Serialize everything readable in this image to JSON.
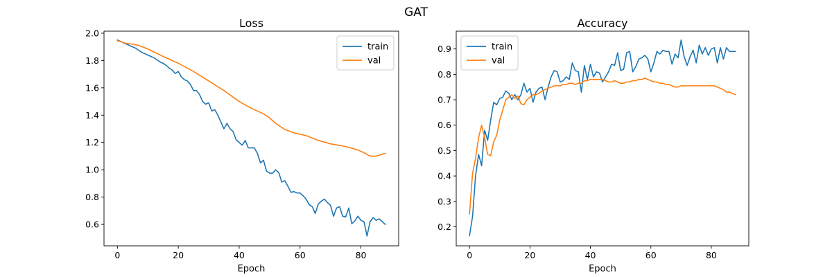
{
  "figure": {
    "title": "GAT"
  },
  "colors": {
    "train": "#1f77b4",
    "val": "#ff7f0e"
  },
  "chart_data": [
    {
      "type": "line",
      "title": "Loss",
      "xlabel": "Epoch",
      "ylabel": "",
      "xlim": [
        -4.4,
        92.4
      ],
      "ylim": [
        0.443,
        2.015
      ],
      "xticks": [
        0,
        20,
        40,
        60,
        80
      ],
      "xtick_labels": [
        "0",
        "20",
        "40",
        "60",
        "80"
      ],
      "yticks": [
        0.6,
        0.8,
        1.0,
        1.2,
        1.4,
        1.6,
        1.8,
        2.0
      ],
      "ytick_labels": [
        "0.6",
        "0.8",
        "1.0",
        "1.2",
        "1.4",
        "1.6",
        "1.8",
        "2.0"
      ],
      "legend": {
        "position": "upper right",
        "labels": [
          "train",
          "val"
        ]
      },
      "series": [
        {
          "name": "train",
          "x": [
            0,
            1,
            2,
            3,
            4,
            5,
            6,
            7,
            8,
            9,
            10,
            11,
            12,
            13,
            14,
            15,
            16,
            17,
            18,
            19,
            20,
            21,
            22,
            23,
            24,
            25,
            26,
            27,
            28,
            29,
            30,
            31,
            32,
            33,
            34,
            35,
            36,
            37,
            38,
            39,
            40,
            41,
            42,
            43,
            44,
            45,
            46,
            47,
            48,
            49,
            50,
            51,
            52,
            53,
            54,
            55,
            56,
            57,
            58,
            59,
            60,
            61,
            62,
            63,
            64,
            65,
            66,
            67,
            68,
            69,
            70,
            71,
            72,
            73,
            74,
            75,
            76,
            77,
            78,
            79,
            80,
            81,
            82,
            83,
            84,
            85,
            86,
            87,
            88
          ],
          "y": [
            1.95,
            1.94,
            1.93,
            1.92,
            1.91,
            1.9,
            1.89,
            1.875,
            1.86,
            1.85,
            1.84,
            1.83,
            1.82,
            1.805,
            1.79,
            1.78,
            1.765,
            1.745,
            1.73,
            1.705,
            1.72,
            1.68,
            1.66,
            1.65,
            1.625,
            1.58,
            1.58,
            1.55,
            1.5,
            1.48,
            1.49,
            1.43,
            1.44,
            1.4,
            1.35,
            1.3,
            1.34,
            1.3,
            1.28,
            1.22,
            1.2,
            1.18,
            1.215,
            1.16,
            1.16,
            1.16,
            1.12,
            1.05,
            1.07,
            0.99,
            0.975,
            0.975,
            1.0,
            0.98,
            0.91,
            0.92,
            0.88,
            0.835,
            0.84,
            0.83,
            0.83,
            0.81,
            0.785,
            0.745,
            0.73,
            0.68,
            0.75,
            0.77,
            0.785,
            0.76,
            0.74,
            0.66,
            0.72,
            0.73,
            0.66,
            0.655,
            0.72,
            0.605,
            0.625,
            0.66,
            0.63,
            0.62,
            0.515,
            0.62,
            0.65,
            0.63,
            0.64,
            0.62,
            0.6
          ]
        },
        {
          "name": "val",
          "x": [
            0,
            3,
            5,
            7,
            10,
            15,
            20,
            25,
            30,
            35,
            40,
            44,
            48,
            50,
            52,
            55,
            58,
            62,
            66,
            70,
            75,
            79,
            81,
            83,
            85,
            88
          ],
          "y": [
            1.945,
            1.925,
            1.92,
            1.91,
            1.885,
            1.83,
            1.78,
            1.72,
            1.65,
            1.58,
            1.5,
            1.45,
            1.41,
            1.38,
            1.34,
            1.295,
            1.27,
            1.25,
            1.215,
            1.19,
            1.17,
            1.145,
            1.125,
            1.1,
            1.1,
            1.12
          ]
        }
      ]
    },
    {
      "type": "line",
      "title": "Accuracy",
      "xlabel": "Epoch",
      "ylabel": "",
      "xlim": [
        -4.4,
        92.4
      ],
      "ylim": [
        0.125,
        0.97
      ],
      "xticks": [
        0,
        20,
        40,
        60,
        80
      ],
      "xtick_labels": [
        "0",
        "20",
        "40",
        "60",
        "80"
      ],
      "yticks": [
        0.2,
        0.3,
        0.4,
        0.5,
        0.6,
        0.7,
        0.8,
        0.9
      ],
      "ytick_labels": [
        "0.2",
        "0.3",
        "0.4",
        "0.5",
        "0.6",
        "0.7",
        "0.8",
        "0.9"
      ],
      "legend": {
        "position": "upper left",
        "labels": [
          "train",
          "val"
        ]
      },
      "series": [
        {
          "name": "train",
          "x": [
            0,
            1,
            2,
            3,
            4,
            5,
            6,
            7,
            8,
            9,
            10,
            11,
            12,
            13,
            14,
            15,
            16,
            17,
            18,
            19,
            20,
            21,
            22,
            23,
            24,
            25,
            26,
            27,
            28,
            29,
            30,
            31,
            32,
            33,
            34,
            35,
            36,
            37,
            38,
            39,
            40,
            41,
            42,
            43,
            44,
            45,
            46,
            47,
            48,
            49,
            50,
            51,
            52,
            53,
            54,
            55,
            56,
            57,
            58,
            59,
            60,
            61,
            62,
            63,
            64,
            65,
            66,
            67,
            68,
            69,
            70,
            71,
            72,
            73,
            74,
            75,
            76,
            77,
            78,
            79,
            80,
            81,
            82,
            83,
            84,
            85,
            86,
            87,
            88
          ],
          "y": [
            0.165,
            0.24,
            0.4,
            0.485,
            0.44,
            0.58,
            0.54,
            0.62,
            0.69,
            0.68,
            0.705,
            0.71,
            0.735,
            0.725,
            0.7,
            0.72,
            0.7,
            0.72,
            0.765,
            0.73,
            0.745,
            0.69,
            0.73,
            0.745,
            0.75,
            0.7,
            0.75,
            0.79,
            0.815,
            0.81,
            0.77,
            0.775,
            0.79,
            0.78,
            0.845,
            0.815,
            0.81,
            0.73,
            0.835,
            0.78,
            0.84,
            0.79,
            0.81,
            0.805,
            0.77,
            0.79,
            0.81,
            0.84,
            0.835,
            0.885,
            0.815,
            0.82,
            0.885,
            0.89,
            0.81,
            0.83,
            0.86,
            0.865,
            0.875,
            0.86,
            0.81,
            0.845,
            0.89,
            0.88,
            0.895,
            0.89,
            0.89,
            0.84,
            0.88,
            0.865,
            0.935,
            0.87,
            0.835,
            0.87,
            0.895,
            0.845,
            0.915,
            0.88,
            0.905,
            0.875,
            0.9,
            0.905,
            0.845,
            0.905,
            0.86,
            0.905,
            0.89,
            0.89,
            0.89
          ]
        },
        {
          "name": "val",
          "x": [
            0,
            1,
            2,
            3,
            4,
            5,
            6,
            7,
            8,
            9,
            10,
            11,
            12,
            13,
            14,
            15,
            16,
            17,
            18,
            19,
            20,
            21,
            22,
            23,
            24,
            25,
            26,
            27,
            28,
            29,
            30,
            31,
            32,
            33,
            34,
            35,
            36,
            37,
            38,
            39,
            40,
            41,
            42,
            43,
            44,
            45,
            46,
            47,
            48,
            49,
            50,
            51,
            52,
            53,
            54,
            55,
            56,
            57,
            58,
            59,
            60,
            61,
            62,
            63,
            64,
            65,
            66,
            67,
            68,
            69,
            70,
            71,
            72,
            73,
            74,
            75,
            76,
            77,
            78,
            79,
            80,
            81,
            82,
            83,
            84,
            85,
            86,
            87,
            88
          ],
          "y": [
            0.25,
            0.41,
            0.47,
            0.55,
            0.6,
            0.55,
            0.485,
            0.48,
            0.535,
            0.56,
            0.62,
            0.66,
            0.7,
            0.71,
            0.72,
            0.705,
            0.715,
            0.685,
            0.68,
            0.7,
            0.71,
            0.72,
            0.72,
            0.725,
            0.735,
            0.74,
            0.745,
            0.75,
            0.755,
            0.755,
            0.755,
            0.76,
            0.76,
            0.765,
            0.765,
            0.76,
            0.765,
            0.765,
            0.775,
            0.775,
            0.78,
            0.78,
            0.78,
            0.78,
            0.78,
            0.775,
            0.77,
            0.77,
            0.775,
            0.77,
            0.765,
            0.765,
            0.77,
            0.77,
            0.775,
            0.775,
            0.78,
            0.78,
            0.785,
            0.78,
            0.775,
            0.77,
            0.77,
            0.765,
            0.765,
            0.76,
            0.76,
            0.755,
            0.75,
            0.75,
            0.755,
            0.755,
            0.755,
            0.755,
            0.755,
            0.755,
            0.755,
            0.755,
            0.755,
            0.755,
            0.755,
            0.755,
            0.75,
            0.745,
            0.74,
            0.73,
            0.73,
            0.725,
            0.72
          ]
        }
      ]
    }
  ]
}
